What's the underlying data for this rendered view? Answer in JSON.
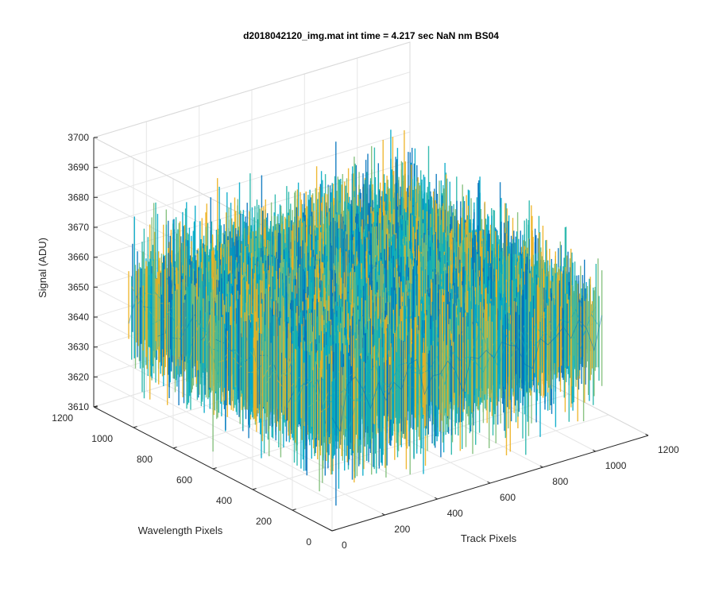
{
  "chart_data": {
    "type": "surface",
    "title": "d2018042120_img.mat int time = 4.217 sec  NaN nm BS04",
    "xlabel": "Track Pixels",
    "ylabel": "Wavelength Pixels",
    "zlabel": "Signal (ADU)",
    "xlim": [
      0,
      1200
    ],
    "ylim": [
      0,
      1200
    ],
    "zlim": [
      3610,
      3700
    ],
    "xticks": [
      "0",
      "200",
      "400",
      "600",
      "800",
      "1000",
      "1200"
    ],
    "yticks": [
      "0",
      "200",
      "400",
      "600",
      "800",
      "1000",
      "1200"
    ],
    "zticks": [
      "3610",
      "3620",
      "3630",
      "3640",
      "3650",
      "3660",
      "3670",
      "3680",
      "3690",
      "3700"
    ],
    "surface_extent": {
      "x": [
        0,
        1024
      ],
      "y": [
        0,
        1024
      ]
    },
    "signal_mean": 3652,
    "signal_min": 3611,
    "signal_max": 3697,
    "grid": true,
    "colormap": [
      "#0072bd",
      "#00a8c8",
      "#21b5a8",
      "#7dbd75",
      "#edb120"
    ]
  }
}
